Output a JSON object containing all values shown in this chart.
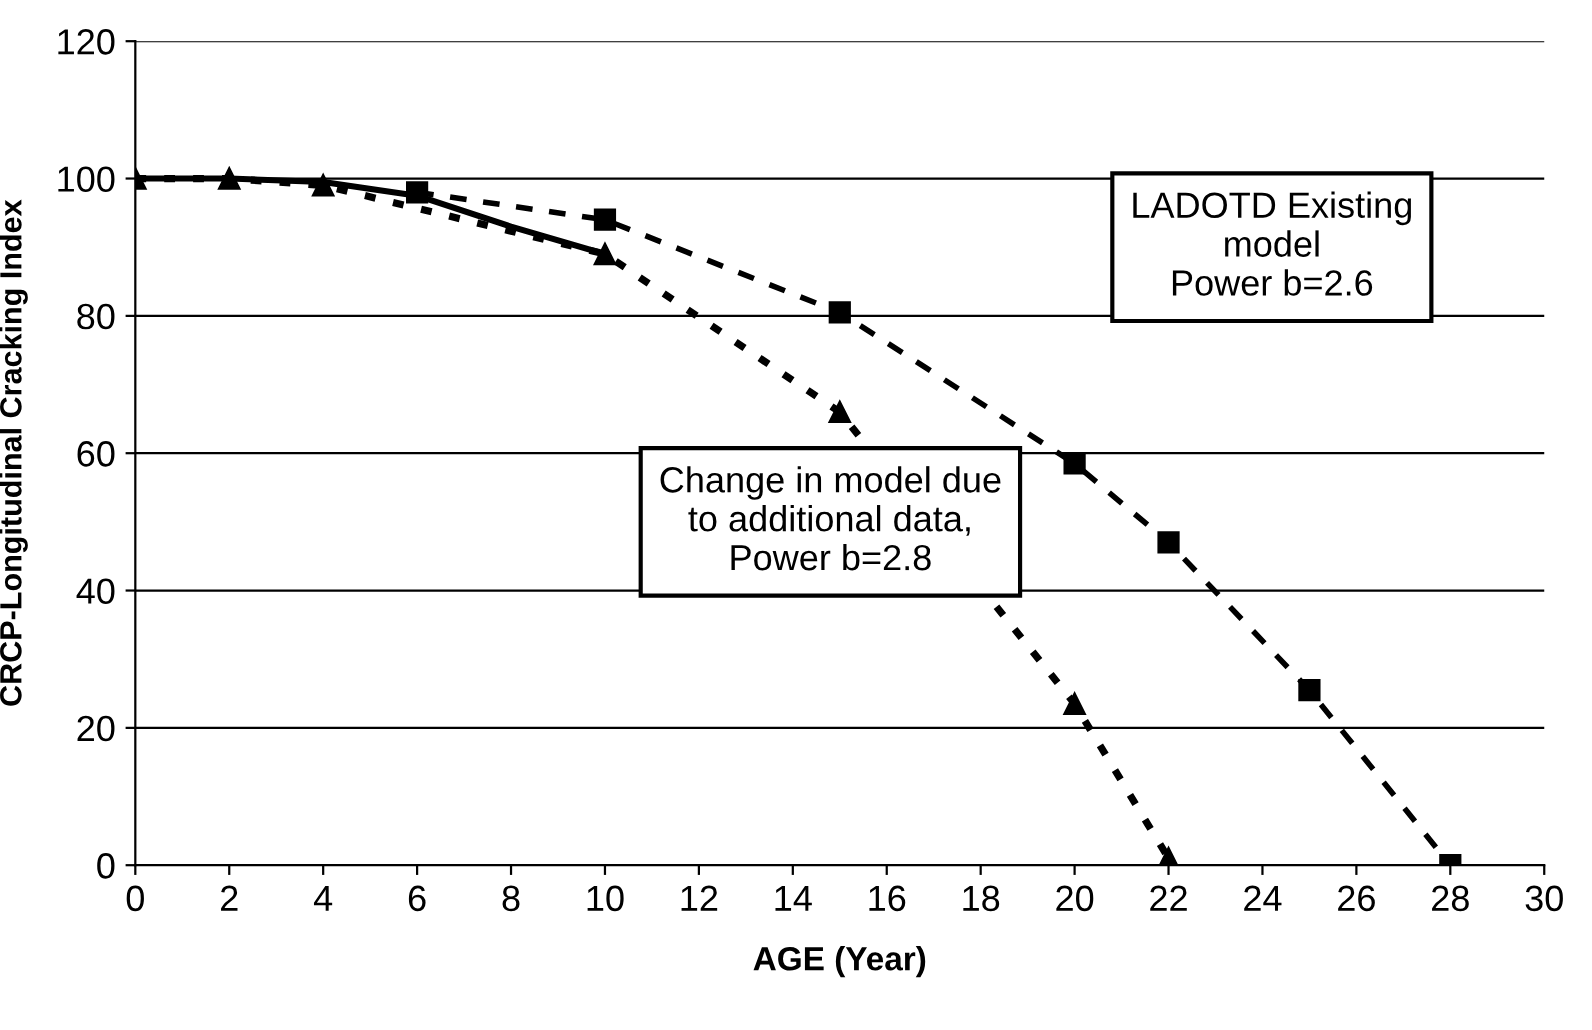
{
  "chart_data": {
    "type": "line",
    "xlabel": "AGE (Year)",
    "ylabel": "CRCP-Longitudinal Cracking Index",
    "xlim": [
      0,
      30
    ],
    "xticks": [
      0,
      2,
      4,
      6,
      8,
      10,
      12,
      14,
      16,
      18,
      20,
      22,
      24,
      26,
      28,
      30
    ],
    "ylim": [
      0,
      120
    ],
    "yticks": [
      0,
      20,
      40,
      60,
      80,
      100,
      120
    ],
    "grid": "y",
    "legend": false,
    "series": [
      {
        "color": "#000000",
        "marker": "square",
        "line_style": "dashed",
        "x": [
          6,
          10,
          15,
          20,
          22,
          25,
          28
        ],
        "values": [
          98,
          94,
          80.5,
          58.5,
          47,
          25.5,
          0
        ]
      },
      {
        "color": "#000000",
        "marker": "triangle",
        "line_style": "dotted",
        "x": [
          0,
          2,
          4,
          10,
          15,
          20,
          22
        ],
        "values": [
          100,
          100,
          99,
          89,
          66,
          23.5,
          1
        ]
      },
      {
        "color": "#000000",
        "marker": "none",
        "line_style": "solid",
        "x": [
          0,
          2,
          4,
          6,
          8,
          10
        ],
        "values": [
          100,
          100,
          99.5,
          97.5,
          93,
          89
        ]
      }
    ],
    "annotations": [
      "LADOTD Existing\nmodel\nPower b=2.6",
      "Change in model due\nto additional data,\nPower b=2.8"
    ]
  }
}
